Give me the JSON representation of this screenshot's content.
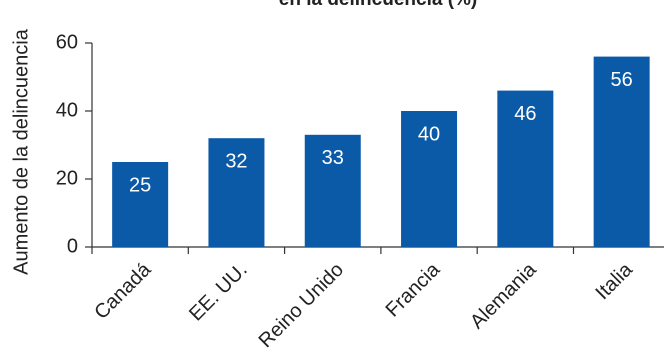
{
  "chart_data": {
    "type": "bar",
    "title": "en la delincuencia (%)",
    "y_label": "Aumento de la delincuencia",
    "categories": [
      "Canadá",
      "EE. UU.",
      "Reino Unido",
      "Francia",
      "Alemania",
      "Italia"
    ],
    "values": [
      25,
      32,
      33,
      40,
      46,
      56
    ],
    "color": "#0a5aa8",
    "ylim": [
      0,
      60
    ],
    "yticks": [
      0,
      20,
      40,
      60
    ],
    "grid": false
  }
}
